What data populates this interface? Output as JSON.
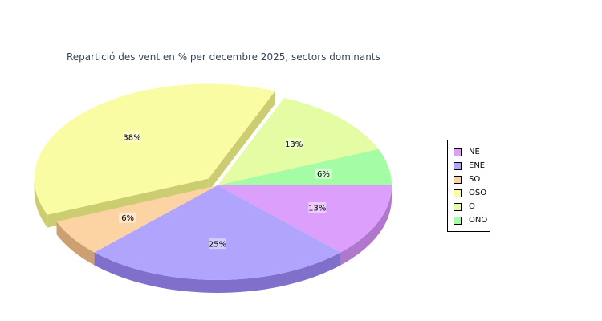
{
  "chart_data": {
    "type": "pie",
    "title": "Repartició des vent en % per decembre 2025, sectors dominants",
    "slices": [
      {
        "name": "NE",
        "value": 12.5,
        "label": "13%",
        "color": "#dca0fc",
        "side": "#b078cc",
        "exploded": false
      },
      {
        "name": "ENE",
        "value": 25,
        "label": "25%",
        "color": "#b0a4fc",
        "side": "#8070cc",
        "exploded": false
      },
      {
        "name": "SO",
        "value": 6.25,
        "label": "6%",
        "color": "#fcd4a4",
        "side": "#cca070",
        "exploded": false
      },
      {
        "name": "OSO",
        "value": 37.5,
        "label": "38%",
        "color": "#fafca4",
        "side": "#cccc70",
        "exploded": true
      },
      {
        "name": "O",
        "value": 12.5,
        "label": "13%",
        "color": "#e4fca4",
        "side": "#b4cc74",
        "exploded": false
      },
      {
        "name": "ONO",
        "value": 6.25,
        "label": "6%",
        "color": "#a4fca4",
        "side": "#74cc74",
        "exploded": false
      }
    ],
    "legend_position": "right",
    "style": "3d"
  }
}
